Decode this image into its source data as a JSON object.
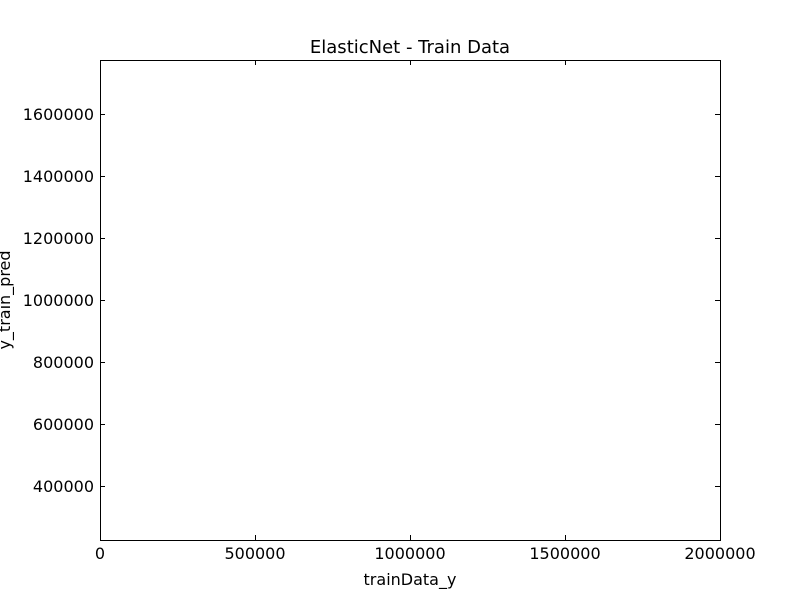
{
  "chart_data": {
    "type": "scatter",
    "title": "ElasticNet - Train Data",
    "xlabel": "trainData_y",
    "ylabel": "y_train_pred",
    "xlim": [
      0,
      2000000
    ],
    "ylim": [
      225000,
      1775000
    ],
    "x_ticks": [
      0,
      500000,
      1000000,
      1500000,
      2000000
    ],
    "x_tick_labels": [
      "0",
      "500000",
      "1000000",
      "1500000",
      "2000000"
    ],
    "y_ticks": [
      400000,
      600000,
      800000,
      1000000,
      1200000,
      1400000,
      1600000
    ],
    "y_tick_labels": [
      "400000",
      "600000",
      "800000",
      "1000000",
      "1200000",
      "1400000",
      "1600000"
    ],
    "series": [],
    "grid": false,
    "legend": "none"
  }
}
